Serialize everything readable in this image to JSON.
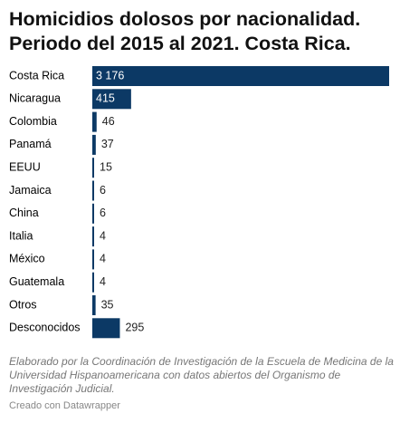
{
  "chart_data": {
    "type": "bar",
    "orientation": "horizontal",
    "title": "Homicidios dolosos por nacionalidad. Periodo del 2015 al 2021. Costa Rica.",
    "categories": [
      "Costa Rica",
      "Nicaragua",
      "Colombia",
      "Panamá",
      "EEUU",
      "Jamaica",
      "China",
      "Italia",
      "México",
      "Guatemala",
      "Otros",
      "Desconocidos"
    ],
    "values": [
      3176,
      415,
      46,
      37,
      15,
      6,
      6,
      4,
      4,
      4,
      35,
      295
    ],
    "value_labels": [
      "3 176",
      "415",
      "46",
      "37",
      "15",
      "6",
      "6",
      "4",
      "4",
      "4",
      "35",
      "295"
    ],
    "color": "#0c3965",
    "notes": "Elaborado por la Coordinación de Investigación de la Escuela de Medicina de la Universidad Hispanoamericana con datos abiertos del Organismo de Investigación Judicial.",
    "credit": "Creado con Datawrapper"
  }
}
